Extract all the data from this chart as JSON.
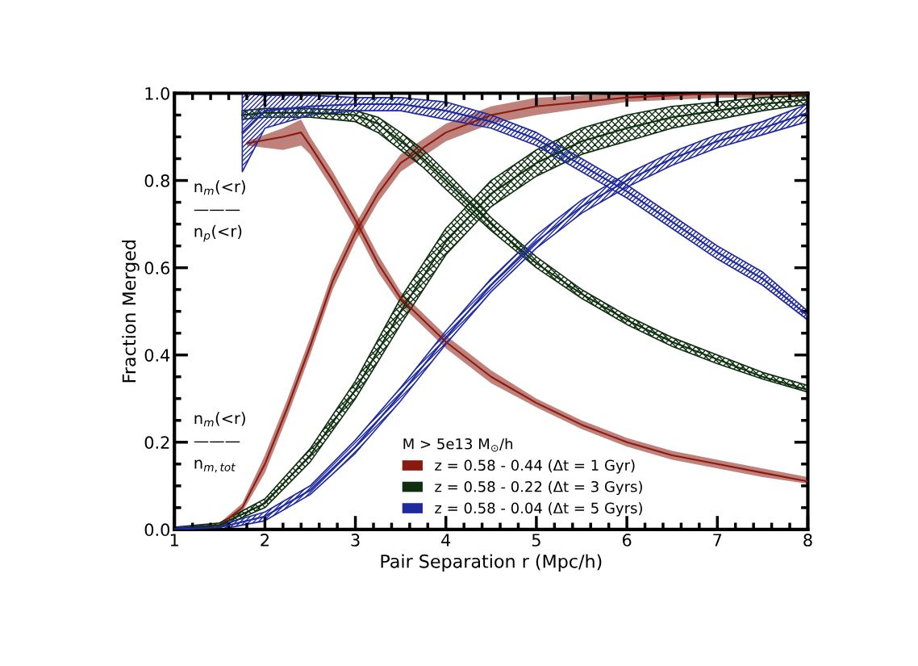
{
  "chart_data": {
    "type": "line",
    "xlabel": "Pair Separation r (Mpc/h)",
    "ylabel": "Fraction Merged",
    "legend_title": "M > 5e13 M$_{⊙}$/h",
    "legend": "bottom",
    "grid": false,
    "marker": "none",
    "line_style": "solid",
    "xlim": [
      1,
      8
    ],
    "ylim": [
      0,
      1
    ],
    "xticks": [
      1,
      2,
      3,
      4,
      5,
      6,
      7,
      8
    ],
    "yticks": [
      {
        "value": 0,
        "label": "0.0"
      },
      {
        "value": 0.2,
        "label": "0.2"
      },
      {
        "value": 0.4,
        "label": "0.4"
      },
      {
        "value": 0.6,
        "label": "0.6"
      },
      {
        "value": 0.8,
        "label": "0.8"
      },
      {
        "value": 1,
        "label": "1.0"
      }
    ],
    "annotations": [
      "n$_{m}$(<r)\n———\nn$_{p}$(<r)",
      "n$_{m}$(<r)\n———\nn$_{m,tot}$"
    ],
    "series": [
      {
        "name": "z = 0.58 - 0.44 (Δt = 1 Gyr)",
        "color": "#8b1a0e",
        "x": [
          1,
          1.5,
          1.75,
          2,
          2.25,
          2.5,
          2.75,
          3,
          3.25,
          3.5,
          4,
          4.5,
          5,
          6,
          7,
          8
        ],
        "values": [
          0,
          0.01,
          0.05,
          0.15,
          0.28,
          0.42,
          0.57,
          0.68,
          0.77,
          0.84,
          0.91,
          0.95,
          0.97,
          0.99,
          1.0,
          1.0
        ],
        "lower": [
          0,
          0.005,
          0.04,
          0.13,
          0.26,
          0.4,
          0.55,
          0.66,
          0.75,
          0.82,
          0.89,
          0.93,
          0.95,
          0.98,
          0.99,
          0.99
        ],
        "upper": [
          0.005,
          0.015,
          0.06,
          0.17,
          0.3,
          0.44,
          0.59,
          0.7,
          0.79,
          0.86,
          0.93,
          0.97,
          0.99,
          1.0,
          1.0,
          1.0
        ]
      },
      {
        "color": "#8b1a0e",
        "x": [
          1.8,
          2.2,
          2.4,
          2.5,
          2.75,
          3,
          3.25,
          3.5,
          4,
          4.5,
          5,
          5.5,
          6,
          6.5,
          7,
          7.5,
          8
        ],
        "values": [
          0.885,
          0.9,
          0.91,
          0.88,
          0.8,
          0.71,
          0.61,
          0.53,
          0.43,
          0.35,
          0.29,
          0.24,
          0.2,
          0.17,
          0.15,
          0.13,
          0.11
        ],
        "lower": [
          0.88,
          0.87,
          0.88,
          0.86,
          0.78,
          0.69,
          0.59,
          0.515,
          0.415,
          0.335,
          0.28,
          0.23,
          0.19,
          0.16,
          0.14,
          0.12,
          0.105
        ],
        "upper": [
          0.89,
          0.92,
          0.94,
          0.9,
          0.82,
          0.73,
          0.63,
          0.545,
          0.445,
          0.365,
          0.3,
          0.25,
          0.21,
          0.18,
          0.16,
          0.14,
          0.12
        ]
      },
      {
        "name": "z = 0.58 - 0.22 (Δt = 3 Gyrs)",
        "color": "#0f3010",
        "x": [
          1,
          1.5,
          2,
          2.5,
          3,
          3.5,
          4,
          4.5,
          5,
          5.5,
          6,
          6.5,
          7,
          7.5,
          8
        ],
        "values": [
          0,
          0.01,
          0.06,
          0.17,
          0.32,
          0.5,
          0.66,
          0.77,
          0.84,
          0.89,
          0.92,
          0.945,
          0.96,
          0.975,
          0.985
        ],
        "lower": [
          0,
          0.005,
          0.05,
          0.155,
          0.3,
          0.47,
          0.63,
          0.74,
          0.81,
          0.86,
          0.89,
          0.92,
          0.94,
          0.96,
          0.975
        ],
        "upper": [
          0.005,
          0.015,
          0.07,
          0.185,
          0.34,
          0.53,
          0.69,
          0.8,
          0.87,
          0.92,
          0.95,
          0.97,
          0.98,
          0.99,
          0.995
        ]
      },
      {
        "color": "#0f3010",
        "x": [
          1.75,
          2,
          2.5,
          3,
          3.25,
          3.5,
          3.75,
          4,
          4.5,
          5,
          5.5,
          6,
          6.5,
          7,
          7.5,
          8
        ],
        "values": [
          0.95,
          0.955,
          0.955,
          0.95,
          0.93,
          0.89,
          0.85,
          0.8,
          0.7,
          0.61,
          0.54,
          0.48,
          0.43,
          0.39,
          0.35,
          0.32
        ],
        "lower": [
          0.94,
          0.945,
          0.945,
          0.935,
          0.91,
          0.87,
          0.83,
          0.78,
          0.685,
          0.6,
          0.53,
          0.47,
          0.42,
          0.38,
          0.345,
          0.315
        ],
        "upper": [
          0.96,
          0.965,
          0.965,
          0.96,
          0.945,
          0.91,
          0.87,
          0.82,
          0.715,
          0.625,
          0.55,
          0.49,
          0.44,
          0.4,
          0.36,
          0.33
        ]
      },
      {
        "name": "z = 0.58 - 0.04 (Δt = 5 Gyrs)",
        "color": "#1f2a9e",
        "x": [
          1,
          1.5,
          2,
          2.5,
          3,
          3.5,
          4,
          4.5,
          5,
          5.5,
          6,
          6.5,
          7,
          7.5,
          8
        ],
        "values": [
          0,
          0.005,
          0.03,
          0.09,
          0.19,
          0.31,
          0.44,
          0.56,
          0.66,
          0.74,
          0.8,
          0.85,
          0.89,
          0.92,
          0.955
        ],
        "lower": [
          0,
          0.0,
          0.02,
          0.08,
          0.175,
          0.295,
          0.425,
          0.545,
          0.645,
          0.725,
          0.785,
          0.835,
          0.875,
          0.905,
          0.935
        ],
        "upper": [
          0.005,
          0.01,
          0.04,
          0.1,
          0.205,
          0.325,
          0.455,
          0.575,
          0.675,
          0.755,
          0.815,
          0.865,
          0.905,
          0.935,
          0.975
        ]
      },
      {
        "color": "#1f2a9e",
        "x": [
          1.75,
          2,
          2.5,
          3,
          3.5,
          4,
          4.5,
          5,
          5.5,
          6,
          6.5,
          7,
          7.5,
          8
        ],
        "values": [
          0.91,
          0.96,
          0.97,
          0.975,
          0.975,
          0.96,
          0.935,
          0.895,
          0.835,
          0.775,
          0.705,
          0.635,
          0.575,
          0.49
        ],
        "lower": [
          0.82,
          0.92,
          0.95,
          0.96,
          0.96,
          0.94,
          0.92,
          0.88,
          0.82,
          0.76,
          0.69,
          0.62,
          0.56,
          0.48
        ],
        "upper": [
          1.0,
          0.995,
          0.995,
          0.99,
          0.99,
          0.98,
          0.95,
          0.91,
          0.85,
          0.79,
          0.72,
          0.65,
          0.59,
          0.5
        ]
      }
    ]
  }
}
